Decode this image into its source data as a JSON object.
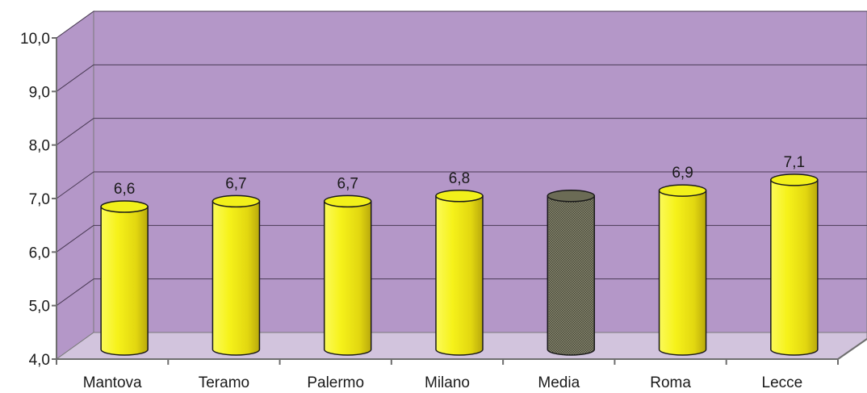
{
  "chart_data": {
    "type": "bar",
    "bar_shape": "cylinder",
    "categories": [
      "Mantova",
      "Teramo",
      "Palermo",
      "Milano",
      "Media",
      "Roma",
      "Lecce"
    ],
    "values": [
      6.6,
      6.7,
      6.7,
      6.8,
      6.8,
      6.9,
      7.1
    ],
    "data_labels": [
      "6,6",
      "6,7",
      "6,7",
      "6,8",
      "",
      "6,9",
      "7,1"
    ],
    "ylim": [
      4.0,
      10.0
    ],
    "yticks": [
      4.0,
      5.0,
      6.0,
      7.0,
      8.0,
      9.0,
      10.0
    ],
    "ytick_labels": [
      "4,0",
      "5,0",
      "6,0",
      "7,0",
      "8,0",
      "9,0",
      "10,0"
    ],
    "title": "",
    "xlabel": "",
    "ylabel": "",
    "grid": true,
    "legend": "none",
    "colors": {
      "plot_background": "#b497c8",
      "floor": "#d2c4dd",
      "bar": "#f2f01a",
      "bar_highlight": "#6b6b55",
      "gridline": "#4a3a55"
    },
    "highlight_category": "Media"
  }
}
